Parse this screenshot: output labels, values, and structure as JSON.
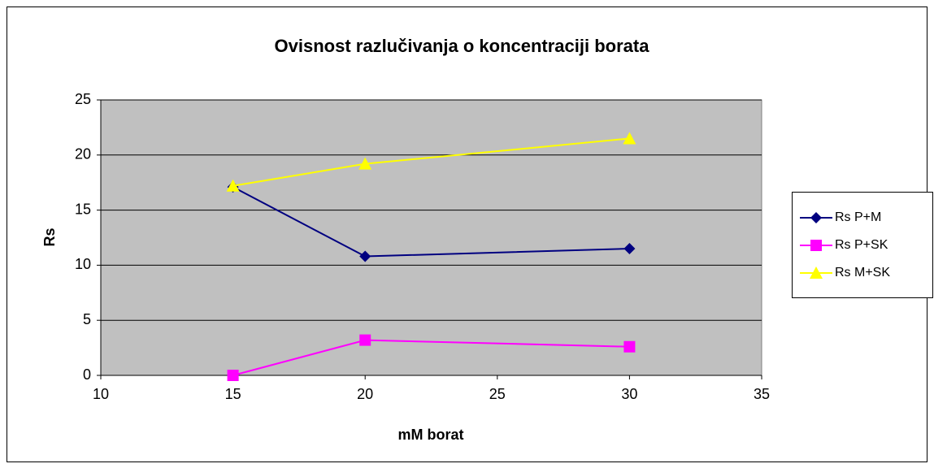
{
  "chart_data": {
    "type": "line",
    "title": "Ovisnost razlučivanja o koncentraciji borata",
    "x_label": "mM borat",
    "y_label": "Rs",
    "x": [
      15,
      20,
      30
    ],
    "series": [
      {
        "name": "Rs P+M",
        "color": "#000080",
        "marker": "diamond",
        "values": [
          17.1,
          10.8,
          11.5
        ]
      },
      {
        "name": "Rs P+SK",
        "color": "#ff00ff",
        "marker": "square",
        "values": [
          0,
          3.2,
          2.6
        ]
      },
      {
        "name": "Rs M+SK",
        "color": "#ffff00",
        "marker": "triangle",
        "values": [
          17.2,
          19.2,
          21.5
        ]
      }
    ],
    "xlim": [
      10,
      35
    ],
    "xticks": [
      10,
      15,
      20,
      25,
      30,
      35
    ],
    "ylim": [
      0,
      25
    ],
    "yticks": [
      0,
      5,
      10,
      15,
      20,
      25
    ],
    "grid": true,
    "legend": "right"
  }
}
